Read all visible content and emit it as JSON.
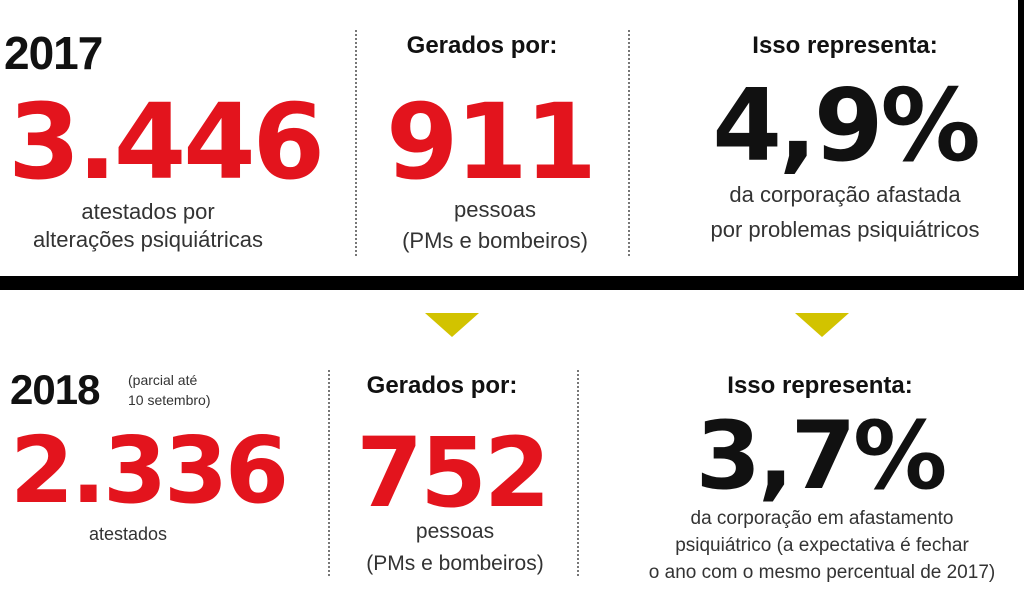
{
  "sections": [
    {
      "year": "2017",
      "count": "3.446",
      "count_caption": [
        "atestados por",
        "alterações psiquiátricas"
      ],
      "generated_heading": "Gerados por:",
      "people": "911",
      "people_caption": [
        "pessoas",
        "(PMs e bombeiros)"
      ],
      "represents_heading": "Isso representa:",
      "percent": "4,9%",
      "percent_caption": [
        "da corporação afastada",
        "por problemas psiquiátricos"
      ]
    },
    {
      "year": "2018",
      "year_note": [
        "(parcial até",
        "10 setembro)"
      ],
      "count": "2.336",
      "count_caption": [
        "atestados"
      ],
      "generated_heading": "Gerados por:",
      "people": "752",
      "people_caption": [
        "pessoas",
        "(PMs e bombeiros)"
      ],
      "represents_heading": "Isso representa:",
      "percent": "3,7%",
      "percent_caption": [
        "da corporação em afastamento",
        "psiquiátrico (a expectativa é fechar",
        "o ano com o mesmo percentual de 2017)"
      ]
    }
  ]
}
